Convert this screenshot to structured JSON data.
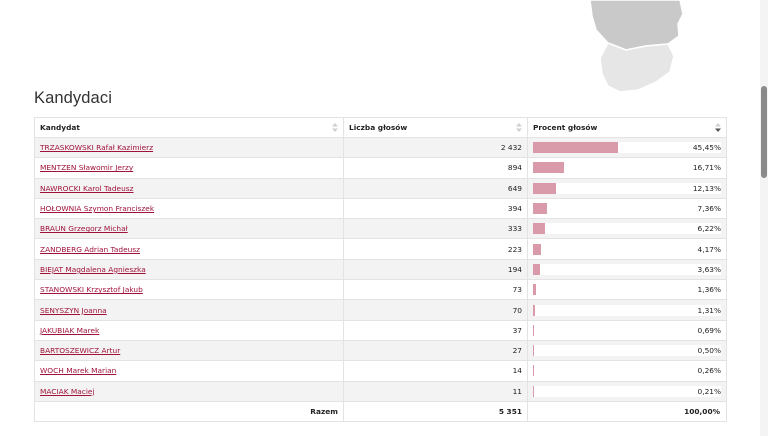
{
  "section_title": "Kandydaci",
  "map_colors": {
    "upper_region": "#c9c9c9",
    "lower_region": "#e6e6e6",
    "border": "#ffffff"
  },
  "bar_color": "#d99aaa",
  "link_color": "#a0123a",
  "table": {
    "headers": {
      "candidate": "Kandydat",
      "votes": "Liczba głosów",
      "percent": "Procent głosów"
    },
    "sort": {
      "column": "percent",
      "direction": "desc"
    },
    "rows": [
      {
        "name": "TRZASKOWSKI Rafał Kazimierz",
        "votes": "2 432",
        "percent": "45,45%",
        "share": 45.45
      },
      {
        "name": "MENTZEN Sławomir Jerzy",
        "votes": "894",
        "percent": "16,71%",
        "share": 16.71
      },
      {
        "name": "NAWROCKI Karol Tadeusz",
        "votes": "649",
        "percent": "12,13%",
        "share": 12.13
      },
      {
        "name": "HOŁOWNIA Szymon Franciszek",
        "votes": "394",
        "percent": "7,36%",
        "share": 7.36
      },
      {
        "name": "BRAUN Grzegorz Michał",
        "votes": "333",
        "percent": "6,22%",
        "share": 6.22
      },
      {
        "name": "ZANDBERG Adrian Tadeusz",
        "votes": "223",
        "percent": "4,17%",
        "share": 4.17
      },
      {
        "name": "BIEJAT Magdalena Agnieszka",
        "votes": "194",
        "percent": "3,63%",
        "share": 3.63
      },
      {
        "name": "STANOWSKI Krzysztof Jakub",
        "votes": "73",
        "percent": "1,36%",
        "share": 1.36
      },
      {
        "name": "SENYSZYN Joanna",
        "votes": "70",
        "percent": "1,31%",
        "share": 1.31
      },
      {
        "name": "JAKUBIAK Marek",
        "votes": "37",
        "percent": "0,69%",
        "share": 0.69
      },
      {
        "name": "BARTOSZEWICZ Artur",
        "votes": "27",
        "percent": "0,50%",
        "share": 0.5
      },
      {
        "name": "WOCH Marek Marian",
        "votes": "14",
        "percent": "0,26%",
        "share": 0.26
      },
      {
        "name": "MACIAK Maciej",
        "votes": "11",
        "percent": "0,21%",
        "share": 0.21
      }
    ],
    "footer": {
      "label": "Razem",
      "votes": "5 351",
      "percent": "100,00%"
    }
  }
}
